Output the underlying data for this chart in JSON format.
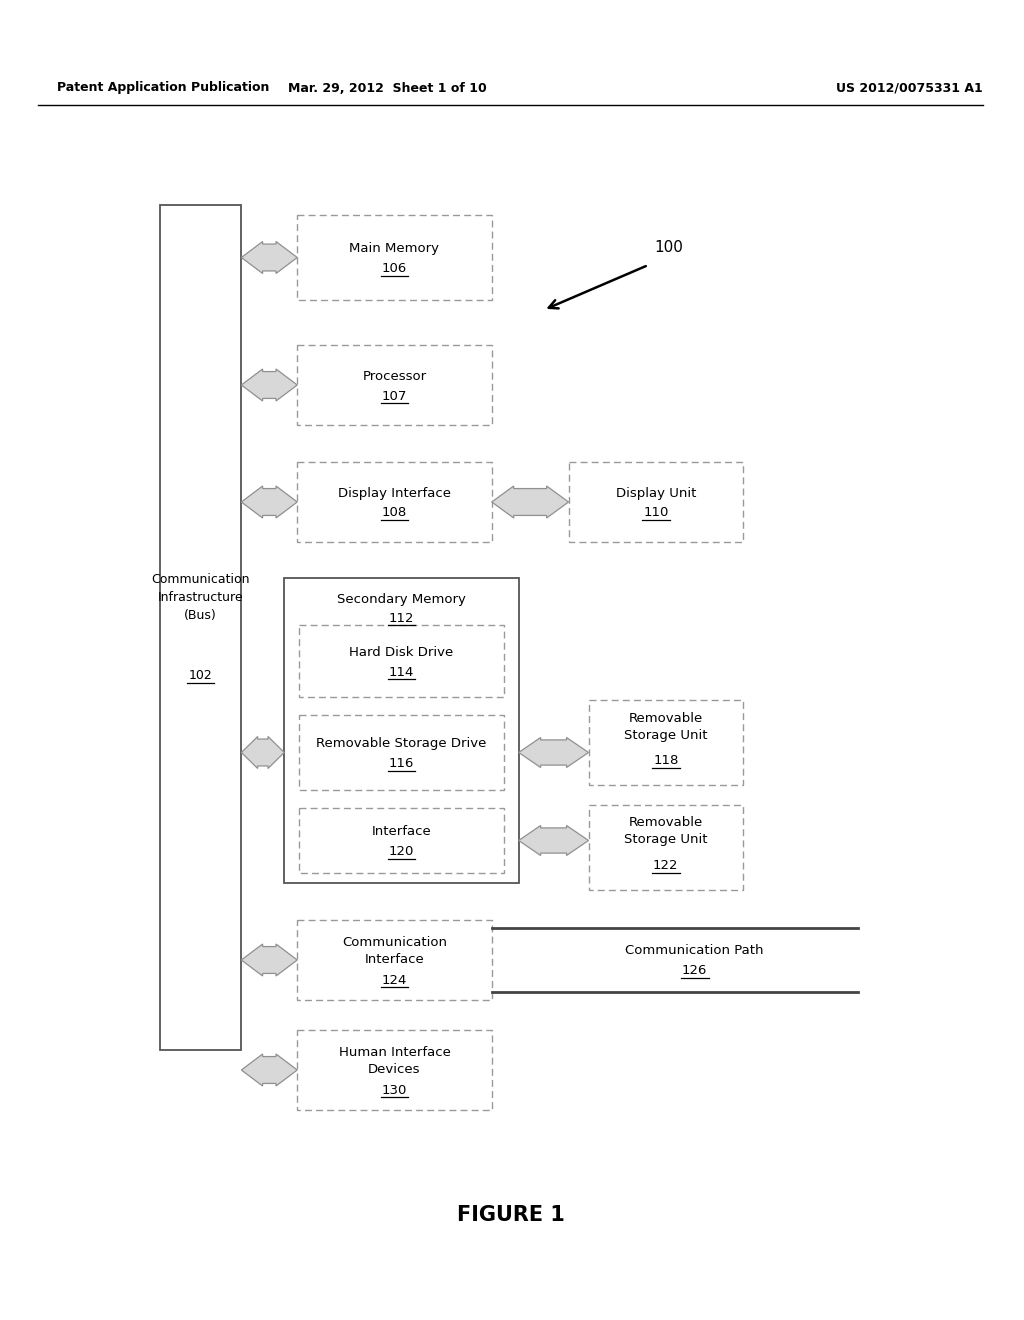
{
  "bg_color": "#ffffff",
  "header_left": "Patent Application Publication",
  "header_mid": "Mar. 29, 2012  Sheet 1 of 10",
  "header_right": "US 2012/0075331 A1",
  "footer": "FIGURE 1",
  "label_100": "100",
  "comm_infra_label": "Communication\nInfrastructure\n(Bus)",
  "comm_infra_num": "102",
  "main_memory_label": "Main Memory",
  "main_memory_num": "106",
  "processor_label": "Processor",
  "processor_num": "107",
  "display_interface_label": "Display Interface",
  "display_interface_num": "108",
  "display_unit_label": "Display Unit",
  "display_unit_num": "110",
  "secondary_memory_label": "Secondary Memory",
  "secondary_memory_num": "112",
  "hard_disk_label": "Hard Disk Drive",
  "hard_disk_num": "114",
  "removable_drive_label": "Removable Storage Drive",
  "removable_drive_num": "116",
  "interface_label": "Interface",
  "interface_num": "120",
  "removable_unit1_label": "Removable\nStorage Unit",
  "removable_unit1_num": "118",
  "removable_unit2_label": "Removable\nStorage Unit",
  "removable_unit2_num": "122",
  "comm_interface_label": "Communication\nInterface",
  "comm_interface_num": "124",
  "comm_path_label": "Communication Path",
  "comm_path_num": "126",
  "human_interface_label": "Human Interface\nDevices",
  "human_interface_num": "130"
}
